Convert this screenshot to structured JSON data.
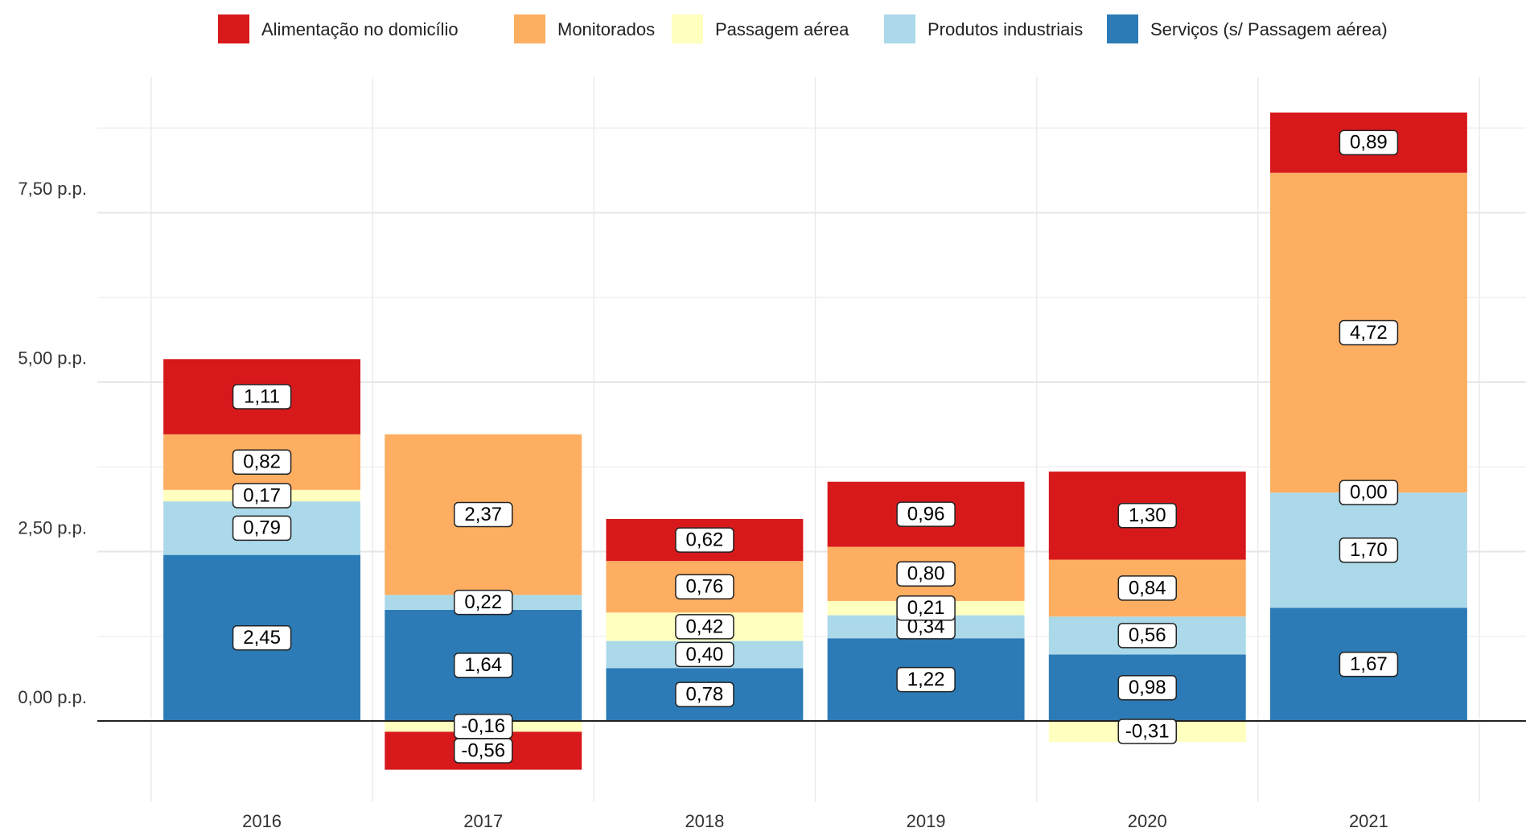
{
  "chart_data": {
    "type": "stacked_bar",
    "categories": [
      "2016",
      "2017",
      "2018",
      "2019",
      "2020",
      "2021"
    ],
    "series": [
      {
        "name": "Alimentação no domicílio",
        "color": "#d7191c",
        "values": [
          1.11,
          -0.56,
          0.62,
          0.96,
          1.3,
          0.89
        ],
        "value_labels": [
          "1,11",
          "-0,56",
          "0,62",
          "0,96",
          "1,30",
          "0,89"
        ]
      },
      {
        "name": "Monitorados",
        "color": "#fdae61",
        "values": [
          0.82,
          2.37,
          0.76,
          0.8,
          0.84,
          4.72
        ],
        "value_labels": [
          "0,82",
          "2,37",
          "0,76",
          "0,80",
          "0,84",
          "4,72"
        ]
      },
      {
        "name": "Passagem aérea",
        "color": "#ffffbf",
        "values": [
          0.17,
          -0.16,
          0.42,
          0.21,
          -0.31,
          0.0
        ],
        "value_labels": [
          "0,17",
          "-0,16",
          "0,42",
          "0,21",
          "-0,31",
          "0,00"
        ]
      },
      {
        "name": "Produtos industriais",
        "color": "#abd9e9",
        "values": [
          0.79,
          0.22,
          0.4,
          0.34,
          0.56,
          1.7
        ],
        "value_labels": [
          "0,79",
          "0,22",
          "0,40",
          "0,34",
          "0,56",
          "1,70"
        ]
      },
      {
        "name": "Serviços (s/ Passagem aérea)",
        "color": "#2c7bb6",
        "values": [
          2.45,
          1.64,
          0.78,
          1.22,
          0.98,
          1.67
        ],
        "value_labels": [
          "2,45",
          "1,64",
          "0,78",
          "1,22",
          "0,98",
          "1,67"
        ]
      }
    ],
    "ylim": [
      -1.2,
      9.5
    ],
    "yticks": [
      {
        "value": 0,
        "label": "0,00 p.p."
      },
      {
        "value": 2.5,
        "label": "2,50 p.p."
      },
      {
        "value": 5,
        "label": "5,00 p.p."
      },
      {
        "value": 7.5,
        "label": "7,50 p.p."
      }
    ],
    "grid": true,
    "legend": "top"
  }
}
